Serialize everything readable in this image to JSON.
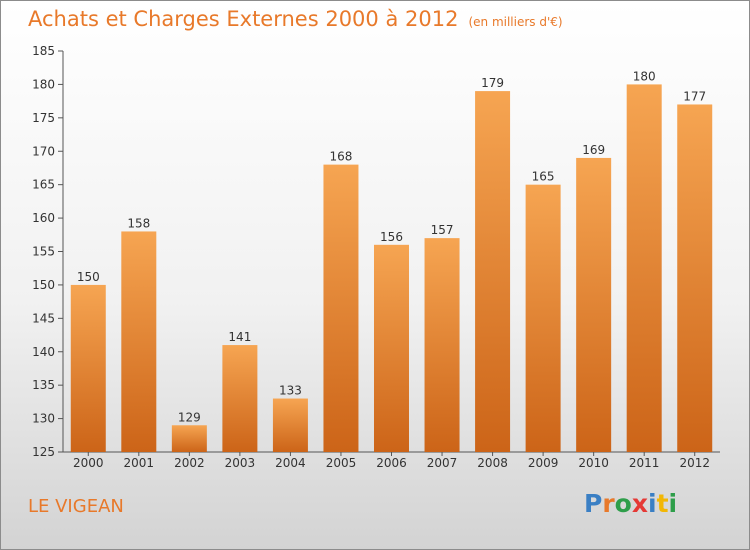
{
  "header": {
    "title": "Achats et Charges Externes 2000 à 2012",
    "subtitle": "(en milliers d'€)"
  },
  "footer": {
    "commune": "LE VIGEAN",
    "logo_text": "Proxiti",
    "logo_colors": [
      "#3a7fc4",
      "#e8792a",
      "#2e9e4a",
      "#e53935",
      "#3a7fc4",
      "#f2b705",
      "#2e9e4a"
    ]
  },
  "colors": {
    "bar_light": "#f6a552",
    "bar_dark": "#cc6418",
    "accent": "#e8792a",
    "axis": "#555555",
    "grid": "#bbbbbb"
  },
  "chart_data": {
    "type": "bar",
    "categories": [
      "2000",
      "2001",
      "2002",
      "2003",
      "2004",
      "2005",
      "2006",
      "2007",
      "2008",
      "2009",
      "2010",
      "2011",
      "2012"
    ],
    "values": [
      150,
      158,
      129,
      141,
      133,
      168,
      156,
      157,
      179,
      165,
      169,
      180,
      177
    ],
    "ylim": [
      125,
      185
    ],
    "yticks": [
      125,
      130,
      135,
      140,
      145,
      150,
      155,
      160,
      165,
      170,
      175,
      180,
      185
    ],
    "title": "Achats et Charges Externes 2000 à 2012",
    "xlabel": "",
    "ylabel": "",
    "grid": false,
    "data_labels": true
  }
}
